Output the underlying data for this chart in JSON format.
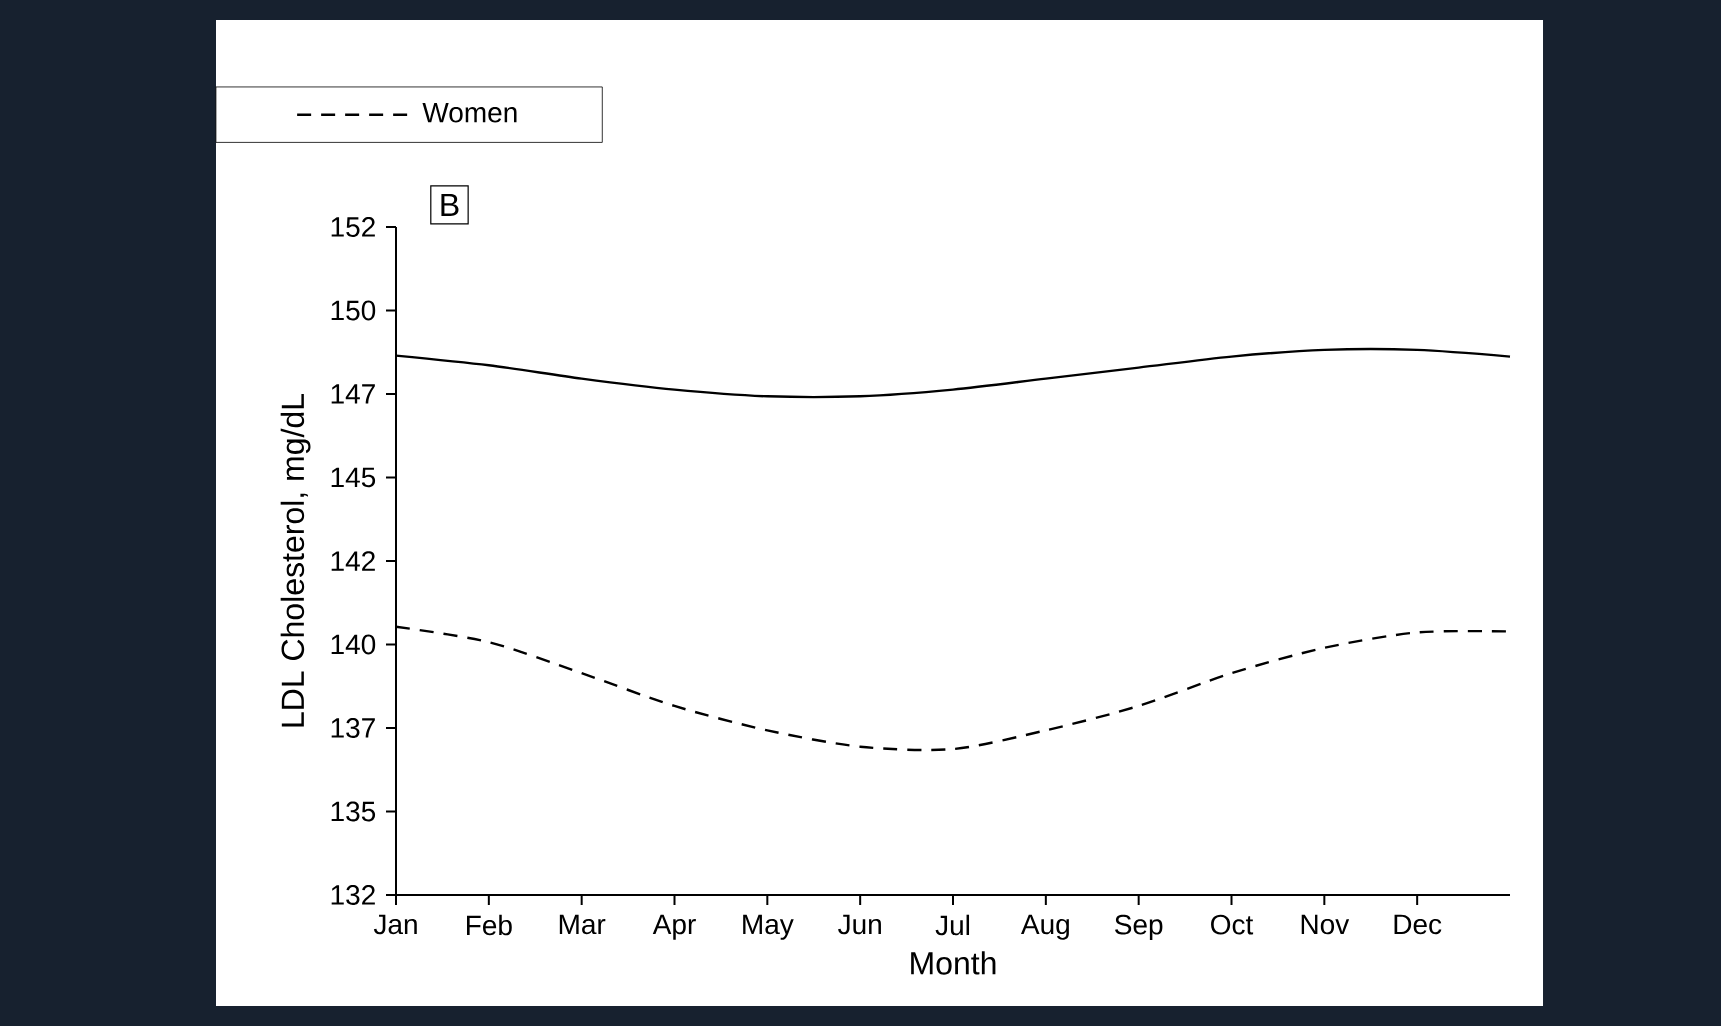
{
  "chart_data": {
    "type": "line",
    "xlabel": "Month",
    "ylabel": "LDL Cholesterol, mg/dL",
    "annotations": [
      "B"
    ],
    "categories": [
      "Jan",
      "Feb",
      "Mar",
      "Apr",
      "May",
      "Jun",
      "Jul",
      "Aug",
      "Sep",
      "Oct",
      "Nov",
      "Dec",
      null
    ],
    "ylim": [
      132.5,
      152.5
    ],
    "yticks": [
      {
        "value": 132.5,
        "label": "132"
      },
      {
        "value": 135,
        "label": "135"
      },
      {
        "value": 137.5,
        "label": "137"
      },
      {
        "value": 140,
        "label": "140"
      },
      {
        "value": 142.5,
        "label": "142"
      },
      {
        "value": 145,
        "label": "145"
      },
      {
        "value": 147.5,
        "label": "147"
      },
      {
        "value": 150,
        "label": "150"
      },
      {
        "value": 152.5,
        "label": "152"
      }
    ],
    "legend": "top left",
    "grid": false,
    "series": [
      {
        "color": "#000000",
        "line_style": "solid",
        "values": [
          148.65,
          148.36,
          147.96,
          147.63,
          147.43,
          147.43,
          147.63,
          147.96,
          148.29,
          148.62,
          148.82,
          148.82,
          148.62
        ]
      },
      {
        "name": "Women",
        "color": "#000000",
        "line_style": "dashed",
        "values": [
          140.53,
          140.07,
          139.14,
          138.16,
          137.43,
          136.94,
          136.87,
          137.43,
          138.16,
          139.14,
          139.9,
          140.36,
          140.39
        ]
      }
    ]
  }
}
